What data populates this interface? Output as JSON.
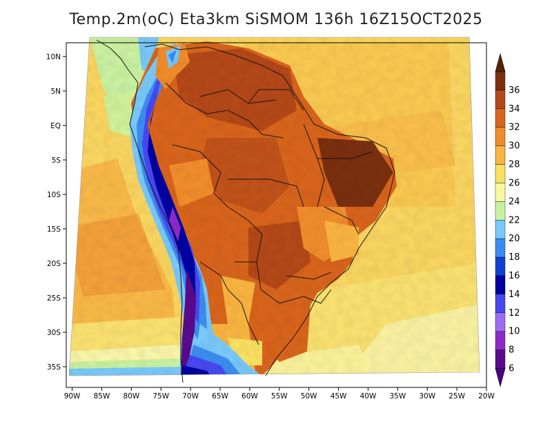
{
  "title": "Temp.2m(oC) Eta3km SiSMOM 136h 16Z15OCT2025",
  "map": {
    "lon_range": [
      -91,
      -20
    ],
    "lat_range": [
      -38,
      12
    ],
    "lon_ticks": [
      {
        "value": -90,
        "label": "90W"
      },
      {
        "value": -85,
        "label": "85W"
      },
      {
        "value": -80,
        "label": "80W"
      },
      {
        "value": -75,
        "label": "75W"
      },
      {
        "value": -70,
        "label": "70W"
      },
      {
        "value": -65,
        "label": "65W"
      },
      {
        "value": -60,
        "label": "60W"
      },
      {
        "value": -55,
        "label": "55W"
      },
      {
        "value": -50,
        "label": "50W"
      },
      {
        "value": -45,
        "label": "45W"
      },
      {
        "value": -40,
        "label": "40W"
      },
      {
        "value": -35,
        "label": "35W"
      },
      {
        "value": -30,
        "label": "30W"
      },
      {
        "value": -25,
        "label": "25W"
      },
      {
        "value": -20,
        "label": "20W"
      }
    ],
    "lat_ticks": [
      {
        "value": 10,
        "label": "10N"
      },
      {
        "value": 5,
        "label": "5N"
      },
      {
        "value": 0,
        "label": "EQ"
      },
      {
        "value": -5,
        "label": "5S"
      },
      {
        "value": -10,
        "label": "10S"
      },
      {
        "value": -15,
        "label": "15S"
      },
      {
        "value": -20,
        "label": "20S"
      },
      {
        "value": -25,
        "label": "25S"
      },
      {
        "value": -30,
        "label": "30S"
      },
      {
        "value": -35,
        "label": "35S"
      }
    ]
  },
  "colorbar": {
    "labels": [
      "6",
      "8",
      "10",
      "12",
      "14",
      "16",
      "18",
      "20",
      "22",
      "24",
      "26",
      "28",
      "30",
      "32",
      "34",
      "36"
    ],
    "colors": [
      "#5a0a8c",
      "#8c2ac8",
      "#9c6cf4",
      "#4848f0",
      "#0000a0",
      "#1040d0",
      "#3c8cf0",
      "#78c8f8",
      "#c8f0a0",
      "#f8f8a0",
      "#f8e060",
      "#f8b440",
      "#f08c2c",
      "#d8641c",
      "#b44818",
      "#7a3010"
    ],
    "over_color": "#5a2008",
    "under_color": "#4b0082"
  }
}
